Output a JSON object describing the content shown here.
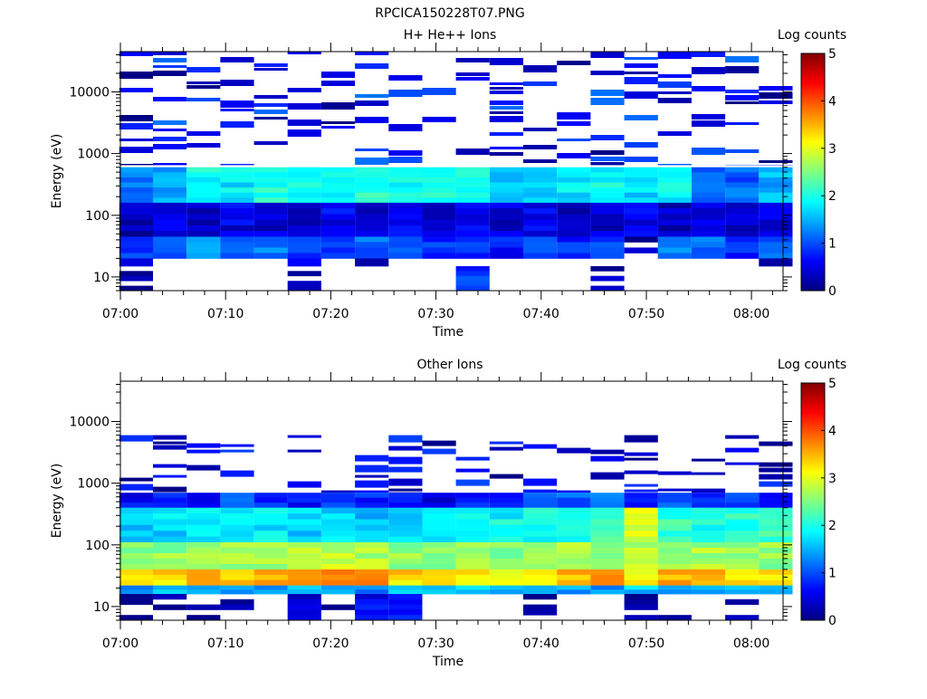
{
  "figure_title": "RPCICA150228T07.PNG",
  "colormap": [
    "#000080",
    "#0000ff",
    "#0080ff",
    "#00ffff",
    "#80ff80",
    "#ffff00",
    "#ff8000",
    "#ff0000",
    "#800000"
  ],
  "chart_data": [
    {
      "type": "heatmap",
      "title": "H+ He++ Ions",
      "xlabel": "Time",
      "ylabel": "Energy (eV)",
      "colorbar_label": "Log counts",
      "colorbar_ticks": [
        "0",
        "1",
        "2",
        "3",
        "4",
        "5"
      ],
      "clim": [
        0,
        5
      ],
      "xlim": [
        "07:00",
        "08:03"
      ],
      "xticks": [
        "07:00",
        "07:10",
        "07:20",
        "07:30",
        "07:40",
        "07:50",
        "08:00"
      ],
      "ylim": [
        6,
        45000
      ],
      "yscale": "log",
      "yticks": [
        "10",
        "100",
        "1000",
        "10000"
      ],
      "time_columns": [
        "07:01.5",
        "07:04.7",
        "07:07.9",
        "07:11.1",
        "07:14.3",
        "07:17.5",
        "07:20.7",
        "07:23.9",
        "07:27.1",
        "07:30.3",
        "07:33.5",
        "07:36.7",
        "07:39.9",
        "07:43.1",
        "07:46.3",
        "07:49.5",
        "07:52.7",
        "07:55.9",
        "07:59.1",
        "08:02.3"
      ],
      "sparse_band": {
        "low_eV": 650,
        "high_eV": 45000,
        "max_log_counts": 1.2
      },
      "bands": [
        {
          "low_eV": 600,
          "high_eV": 160,
          "base": [
            1.2,
            1.4,
            1.9,
            1.8,
            2.0,
            1.9,
            1.8,
            2.0,
            1.9,
            2.1,
            2.0,
            1.6,
            1.7,
            1.8,
            1.9,
            1.7,
            1.8,
            1.2,
            1.1,
            1.5
          ]
        },
        {
          "low_eV": 160,
          "high_eV": 45,
          "base": [
            0.3,
            0.5,
            0.4,
            0.5,
            0.4,
            0.3,
            0.6,
            0.4,
            0.5,
            0.3,
            0.6,
            0.4,
            0.5,
            0.3,
            0.4,
            0.5,
            0.3,
            0.4,
            0.4,
            0.5
          ]
        },
        {
          "low_eV": 45,
          "high_eV": 20,
          "base": [
            1.0,
            1.0,
            1.3,
            1.0,
            1.2,
            0.8,
            1.0,
            1.1,
            1.0,
            0.8,
            0.9,
            0.7,
            1.0,
            0.8,
            0.9,
            0.2,
            1.3,
            1.1,
            0.8,
            1.0
          ]
        },
        {
          "low_eV": 20,
          "high_eV": 15,
          "base": [
            0.5,
            0,
            0,
            0,
            0,
            0.4,
            0,
            0.3,
            0,
            0.2,
            0,
            0,
            0,
            0,
            0,
            0.2,
            0,
            0,
            0,
            0.3
          ]
        },
        {
          "low_eV": 15,
          "high_eV": 6,
          "base": [
            0.1,
            0,
            0,
            0,
            0,
            0.1,
            0,
            0,
            0,
            0,
            0.9,
            0,
            0,
            0,
            0.2,
            0,
            0,
            0,
            0,
            0
          ]
        }
      ]
    },
    {
      "type": "heatmap",
      "title": "Other Ions",
      "xlabel": "Time",
      "ylabel": "Energy (eV)",
      "colorbar_label": "Log counts",
      "colorbar_ticks": [
        "0",
        "1",
        "2",
        "3",
        "4",
        "5"
      ],
      "clim": [
        0,
        5
      ],
      "xlim": [
        "07:00",
        "08:03"
      ],
      "xticks": [
        "07:00",
        "07:10",
        "07:20",
        "07:30",
        "07:40",
        "07:50",
        "08:00"
      ],
      "ylim": [
        6,
        45000
      ],
      "yscale": "log",
      "yticks": [
        "10",
        "100",
        "1000",
        "10000"
      ],
      "time_columns": [
        "07:01.5",
        "07:04.7",
        "07:07.9",
        "07:11.1",
        "07:14.3",
        "07:17.5",
        "07:20.7",
        "07:23.9",
        "07:27.1",
        "07:30.3",
        "07:33.5",
        "07:36.7",
        "07:39.9",
        "07:43.1",
        "07:46.3",
        "07:49.5",
        "07:52.7",
        "07:55.9",
        "07:59.1",
        "08:02.3"
      ],
      "sparse_band": {
        "low_eV": 700,
        "high_eV": 6000,
        "max_log_counts": 1.0
      },
      "bands": [
        {
          "low_eV": 700,
          "high_eV": 400,
          "base": [
            0.6,
            0.8,
            0.7,
            1.0,
            0.9,
            0.6,
            0.9,
            0.8,
            0.6,
            0.5,
            0.7,
            0.8,
            0.9,
            1.1,
            1.2,
            0.8,
            1.0,
            0.9,
            1.0,
            0.8
          ]
        },
        {
          "low_eV": 400,
          "high_eV": 110,
          "base": [
            1.6,
            1.7,
            1.9,
            1.8,
            1.8,
            1.7,
            1.7,
            1.6,
            1.7,
            1.7,
            1.8,
            1.9,
            2.0,
            2.0,
            2.2,
            2.9,
            2.1,
            2.0,
            2.1,
            2.2
          ]
        },
        {
          "low_eV": 110,
          "high_eV": 40,
          "base": [
            2.5,
            2.6,
            2.7,
            2.6,
            2.7,
            2.7,
            2.8,
            2.7,
            2.6,
            2.6,
            2.6,
            2.6,
            2.6,
            2.7,
            2.6,
            2.8,
            2.6,
            2.7,
            2.6,
            2.6
          ]
        },
        {
          "low_eV": 40,
          "high_eV": 22,
          "base": [
            3.2,
            3.3,
            3.4,
            3.3,
            3.5,
            3.5,
            3.6,
            3.6,
            3.3,
            3.2,
            3.2,
            3.2,
            3.2,
            3.4,
            3.8,
            3.1,
            3.5,
            3.5,
            3.2,
            3.2
          ]
        },
        {
          "low_eV": 22,
          "high_eV": 16,
          "base": [
            1.4,
            1.5,
            1.5,
            1.5,
            1.4,
            1.5,
            1.5,
            1.2,
            1.6,
            1.5,
            1.6,
            1.5,
            1.5,
            1.4,
            1.3,
            1.6,
            1.5,
            1.4,
            1.5,
            1.5
          ]
        },
        {
          "low_eV": 16,
          "high_eV": 6,
          "base": [
            0.1,
            0.1,
            0.2,
            0.1,
            0,
            0.4,
            0.1,
            0.6,
            0.7,
            0,
            0,
            0,
            0.1,
            0,
            0,
            0.1,
            0.1,
            0,
            0.2,
            0
          ]
        }
      ]
    }
  ]
}
